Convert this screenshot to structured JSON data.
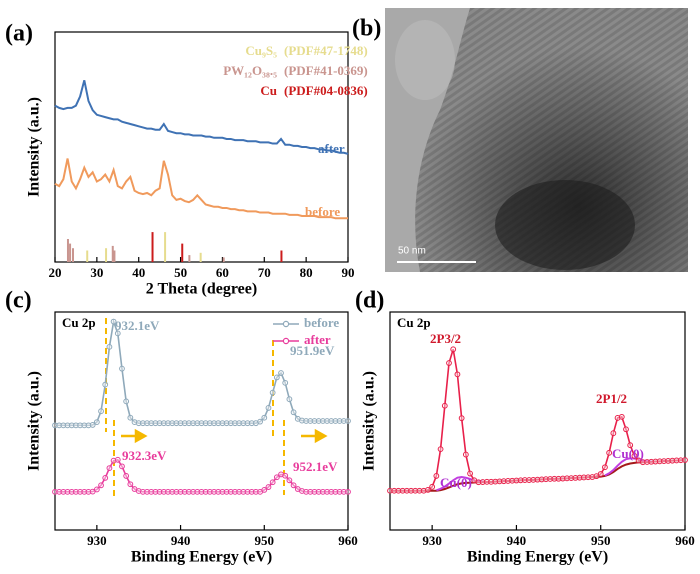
{
  "chart_data": [
    {
      "type": "line",
      "panel_label": "(a)",
      "xlabel": "2 Theta (degree)",
      "ylabel": "Intensity (a.u.)",
      "xlim": [
        20,
        90
      ],
      "xticks": [
        20,
        30,
        40,
        50,
        60,
        70,
        80,
        90
      ],
      "ylim": [
        0,
        100
      ],
      "grid": false,
      "series_labels": true,
      "x": [
        20,
        21,
        22,
        23,
        24,
        25,
        26,
        27,
        28,
        29,
        30,
        31,
        32,
        33,
        34,
        35,
        36,
        37,
        38,
        39,
        40,
        41,
        42,
        43,
        44,
        45,
        46,
        47,
        48,
        49,
        50,
        51,
        52,
        53,
        54,
        55,
        56,
        57,
        58,
        59,
        60,
        61,
        62,
        63,
        64,
        65,
        66,
        67,
        68,
        69,
        70,
        71,
        72,
        73,
        74,
        75,
        76,
        77,
        78,
        79,
        80,
        81,
        82,
        83,
        84,
        85,
        86,
        87,
        88,
        89,
        90
      ],
      "series": [
        {
          "name": "after",
          "color": "#3f72b4",
          "values": [
            68,
            67,
            66.5,
            67,
            67,
            68,
            72,
            79,
            70,
            66,
            64,
            63.5,
            63,
            62.5,
            62,
            62,
            61,
            60.5,
            60,
            59.5,
            59,
            58.5,
            58,
            58,
            57.5,
            57.5,
            60,
            57,
            56.5,
            56,
            56,
            55.5,
            55.5,
            55,
            55,
            55,
            54.5,
            54.5,
            54,
            54,
            54,
            53.5,
            53.5,
            53,
            53,
            53,
            52.5,
            52.5,
            52.5,
            52,
            52,
            52,
            51.5,
            51.5,
            53.5,
            51,
            51,
            50.5,
            50.5,
            50,
            50,
            49.5,
            49.5,
            49,
            49,
            48.5,
            48.5,
            48,
            47.5,
            47.5,
            47
          ]
        },
        {
          "name": "before",
          "color": "#f09a5c",
          "values": [
            34,
            33,
            36,
            45,
            35,
            32,
            36,
            41,
            37,
            39,
            35,
            36,
            38,
            35,
            40,
            33,
            32,
            35,
            37,
            31,
            30,
            29.5,
            30,
            29,
            31,
            32,
            44,
            38,
            29,
            27,
            27.5,
            26.5,
            26,
            27,
            29,
            27,
            25,
            24.5,
            24,
            24,
            23.5,
            23.5,
            23,
            23,
            22.5,
            22.5,
            22,
            22,
            22,
            21.5,
            21.5,
            21.5,
            21,
            21,
            21,
            21,
            20.5,
            20.5,
            20.5,
            20,
            20,
            20,
            20,
            19.5,
            19.5,
            19.5,
            19.5,
            19,
            19,
            19,
            19
          ]
        }
      ],
      "references": [
        {
          "name": "Cu₉S₅",
          "pdf": "(PDF#47-1748)",
          "color": "#e6dc8e",
          "x": [
            27.7,
            32.2,
            46.3,
            54.8
          ],
          "values": [
            5,
            6,
            13,
            4
          ]
        },
        {
          "name": "PW₁₂O₃₈.₅",
          "pdf": "(PDF#41-0369)",
          "color": "#c9958f",
          "x": [
            23.1,
            23.6,
            24.3,
            33.8,
            34.2,
            52.1,
            60.3
          ],
          "values": [
            10,
            8,
            6,
            7,
            5,
            3,
            2
          ]
        },
        {
          "name": "Cu",
          "pdf": "(PDF#04-0836)",
          "color": "#cc1c1c",
          "x": [
            43.3,
            50.4,
            74.1
          ],
          "values": [
            13,
            8,
            5
          ]
        }
      ]
    },
    {
      "type": "line",
      "panel_label": "(c)",
      "title": "Cu 2p",
      "xlabel": "Binding Energy (eV)",
      "ylabel": "Intensity (a.u.)",
      "xlim": [
        925,
        960
      ],
      "xticks": [
        930,
        940,
        950,
        960
      ],
      "ylim": [
        0,
        100
      ],
      "grid": false,
      "legend": "upper right",
      "x": [
        925,
        925.5,
        926,
        926.5,
        927,
        927.5,
        928,
        928.5,
        929,
        929.5,
        930,
        930.5,
        931,
        931.5,
        932,
        932.5,
        933,
        933.5,
        934,
        934.5,
        935,
        935.5,
        936,
        936.5,
        937,
        937.5,
        938,
        938.5,
        939,
        939.5,
        940,
        940.5,
        941,
        941.5,
        942,
        942.5,
        943,
        943.5,
        944,
        944.5,
        945,
        945.5,
        946,
        946.5,
        947,
        947.5,
        948,
        948.5,
        949,
        949.5,
        950,
        950.5,
        951,
        951.5,
        952,
        952.5,
        953,
        953.5,
        954,
        954.5,
        955,
        955.5,
        956,
        956.5,
        957,
        957.5,
        958,
        958.5,
        959,
        959.5,
        960
      ],
      "series": [
        {
          "name": "before",
          "color": "#8fa9ba",
          "marker": "circle",
          "values": [
            48,
            48,
            48,
            48,
            48,
            48,
            48,
            48,
            48,
            48.2,
            49.5,
            54.5,
            66.7,
            84,
            95.6,
            90.2,
            74,
            59,
            51.5,
            49.5,
            49,
            49,
            49,
            49,
            49,
            49,
            49,
            49,
            49,
            49,
            49,
            49,
            49,
            49,
            49,
            49,
            49,
            49,
            49,
            49,
            49,
            49,
            49,
            49,
            49,
            49,
            49,
            49,
            49,
            49.7,
            51.5,
            56,
            63,
            70,
            72,
            67.5,
            60,
            54,
            51,
            50.2,
            50,
            50,
            50,
            50,
            50,
            50,
            50,
            50,
            50,
            50,
            50
          ]
        },
        {
          "name": "after",
          "color": "#e83c9c",
          "marker": "circle",
          "values": [
            17.5,
            17.5,
            17.5,
            17.5,
            17.5,
            17.5,
            17.5,
            17.5,
            17.5,
            17.6,
            18.6,
            20.5,
            23.9,
            28.4,
            31.8,
            32.2,
            29.2,
            24.8,
            21,
            18.8,
            17.9,
            17.5,
            17.5,
            17.5,
            17.5,
            17.5,
            17.5,
            17.5,
            17.5,
            17.5,
            17.5,
            17.5,
            17.5,
            17.5,
            17.5,
            17.5,
            17.5,
            17.5,
            17.5,
            17.5,
            17.5,
            17.5,
            17.5,
            17.5,
            17.5,
            17.5,
            17.5,
            17.5,
            17.5,
            17.5,
            18.4,
            19.7,
            21.9,
            24.2,
            25.5,
            24.9,
            22.8,
            20.5,
            18.8,
            17.9,
            17.5,
            17.5,
            17.5,
            17.5,
            17.5,
            17.5,
            17.5,
            17.5,
            17.5,
            17.5,
            17.5
          ]
        }
      ],
      "annotations": [
        {
          "text": "932.1eV",
          "color": "#8fa9ba"
        },
        {
          "text": "951.9eV",
          "color": "#8fa9ba"
        },
        {
          "text": "932.3eV",
          "color": "#e83c9c"
        },
        {
          "text": "952.1eV",
          "color": "#e83c9c"
        }
      ]
    },
    {
      "type": "line",
      "panel_label": "(d)",
      "title": "Cu 2p",
      "xlabel": "Binding Energy (eV)",
      "ylabel": "Intensity (a.u.)",
      "xlim": [
        925,
        960
      ],
      "xticks": [
        930,
        940,
        950,
        960
      ],
      "ylim": [
        0,
        100
      ],
      "grid": false,
      "x": [
        925,
        925.5,
        926,
        926.5,
        927,
        927.5,
        928,
        928.5,
        929,
        929.5,
        930,
        930.5,
        931,
        931.5,
        932,
        932.5,
        933,
        933.5,
        934,
        934.5,
        935,
        935.5,
        936,
        936.5,
        937,
        937.5,
        938,
        938.5,
        939,
        939.5,
        940,
        940.5,
        941,
        941.5,
        942,
        942.5,
        943,
        943.5,
        944,
        944.5,
        945,
        945.5,
        946,
        946.5,
        947,
        947.5,
        948,
        948.5,
        949,
        949.5,
        950,
        950.5,
        951,
        951.5,
        952,
        952.5,
        953,
        953.5,
        954,
        954.5,
        955,
        955.5,
        956,
        956.5,
        957,
        957.5,
        958,
        958.5,
        959,
        959.5,
        960
      ],
      "series": [
        {
          "color": "#a41a1a",
          "values": [
            18,
            18,
            18,
            18,
            18,
            18,
            18,
            18,
            18,
            18,
            18,
            18,
            18.3,
            18.8,
            19.5,
            20.3,
            21,
            21.4,
            21.6,
            21.7,
            21.8,
            21.9,
            22.0,
            22.1,
            22.1,
            22.2,
            22.3,
            22.4,
            22.5,
            22.6,
            22.7,
            22.8,
            22.9,
            22.9,
            23.0,
            23.1,
            23.2,
            23.3,
            23.4,
            23.5,
            23.5,
            23.6,
            23.7,
            23.8,
            23.9,
            24.0,
            24.1,
            24.2,
            24.3,
            24.4,
            24.5,
            24.8,
            25.5,
            26.6,
            28,
            29.2,
            30,
            30.5,
            30.8,
            31,
            31.1,
            31.2,
            31.3,
            31.4,
            31.5,
            31.6,
            31.7,
            31.8,
            31.9,
            32,
            32.1
          ]
        },
        {
          "color": "#c23ee0",
          "values": [
            null,
            null,
            null,
            null,
            null,
            null,
            null,
            null,
            null,
            null,
            null,
            18.2,
            18.9,
            19.9,
            21.3,
            22.8,
            24,
            24.3,
            24,
            23.4,
            22.8,
            22.4,
            22.2,
            null,
            null,
            null,
            null,
            null,
            null,
            null,
            null,
            null,
            null,
            null,
            null,
            null,
            null,
            null,
            null,
            null,
            null,
            null,
            null,
            null,
            null,
            null,
            null,
            null,
            null,
            null,
            null,
            25,
            26,
            27.5,
            29.5,
            31.3,
            32.5,
            32.9,
            32.8,
            32.4,
            31.9,
            31.6,
            31.5,
            null,
            null,
            null,
            null,
            null,
            null,
            null,
            null
          ]
        },
        {
          "color": "#e8204a",
          "marker": "circle",
          "values": [
            18,
            18,
            18,
            18,
            18,
            18,
            18,
            18,
            18,
            18.4,
            19.8,
            24.8,
            37.1,
            57,
            76.6,
            82.9,
            71.4,
            51.3,
            34.6,
            25.9,
            22.8,
            21.9,
            22.0,
            22.1,
            22.1,
            22.2,
            22.3,
            22.4,
            22.5,
            22.6,
            22.7,
            22.8,
            22.9,
            22.9,
            23.0,
            23.1,
            23.2,
            23.3,
            23.4,
            23.5,
            23.5,
            23.6,
            23.7,
            23.8,
            23.9,
            24.0,
            24.1,
            24.2,
            24.3,
            24.7,
            25.7,
            28.8,
            35.4,
            44.4,
            51.4,
            51.9,
            46.2,
            38.9,
            34,
            31.9,
            31.1,
            31.2,
            31.3,
            31.4,
            31.5,
            31.6,
            31.7,
            31.8,
            31.9,
            32,
            32.1
          ]
        }
      ],
      "annotations": [
        {
          "text": "2P3/2",
          "color": "#d0182c"
        },
        {
          "text": "2P1/2",
          "color": "#d0182c"
        },
        {
          "text": "Cu(0)",
          "color": "#b030d0"
        },
        {
          "text": "Cu(0)",
          "color": "#b030d0"
        }
      ]
    }
  ],
  "image": {
    "panel_label": "(b)",
    "scale_label": "50 nm"
  }
}
